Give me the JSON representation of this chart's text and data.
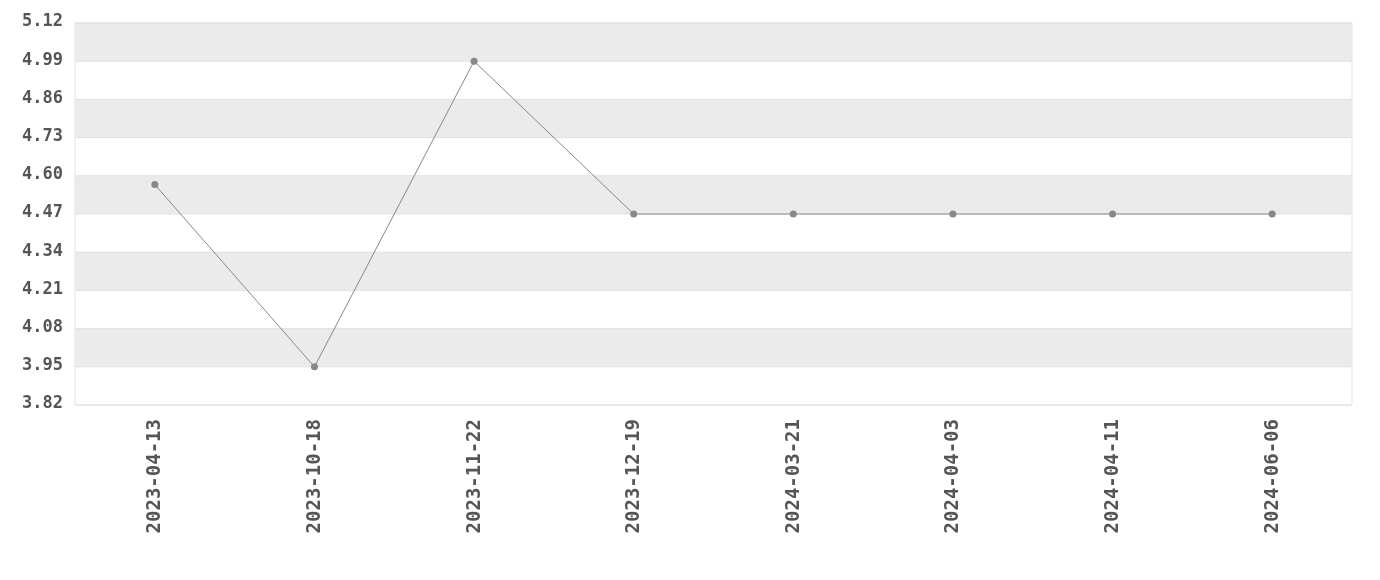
{
  "chart_data": {
    "type": "line",
    "categories": [
      "2023-04-13",
      "2023-10-18",
      "2023-11-22",
      "2023-12-19",
      "2024-03-21",
      "2024-04-03",
      "2024-04-11",
      "2024-06-06"
    ],
    "series": [
      {
        "color": "#888888",
        "values": [
          4.57,
          3.95,
          4.99,
          4.47,
          4.47,
          4.47,
          4.47,
          4.47
        ]
      }
    ],
    "ylim": [
      3.82,
      5.12
    ],
    "yticks": [
      3.82,
      3.95,
      4.08,
      4.21,
      4.34,
      4.47,
      {
        "value": 4.6,
        "label": "4.60"
      },
      4.73,
      4.86,
      4.99,
      5.12
    ],
    "grid": "y",
    "marker": "circle",
    "line_style": "solid"
  }
}
